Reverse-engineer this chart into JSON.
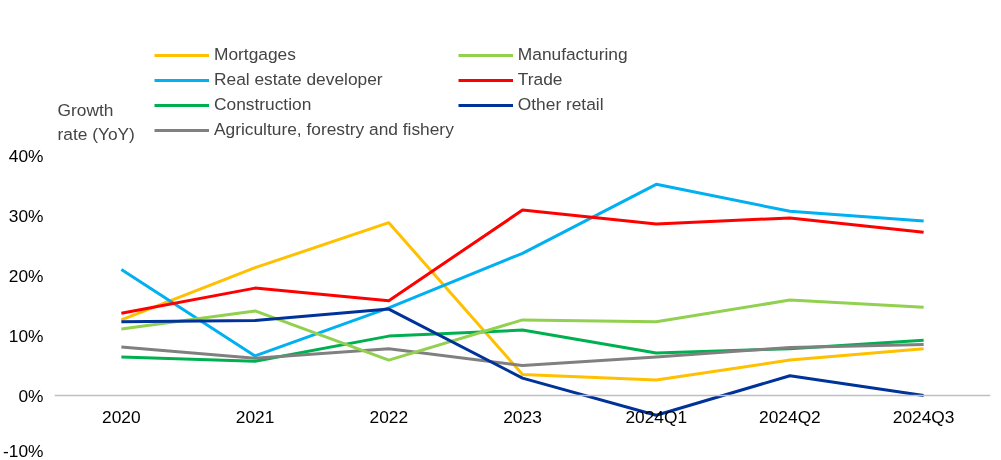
{
  "chart_data": {
    "type": "line",
    "ylabel": "Growth rate (YoY)",
    "categories": [
      "2020",
      "2021",
      "2022",
      "2023",
      "2024Q1",
      "2024Q2",
      "2024Q3"
    ],
    "ylim": [
      -10,
      40
    ],
    "yticks": [
      {
        "value": -10,
        "label": "-10%"
      },
      {
        "value": 0,
        "label": "0%"
      },
      {
        "value": 10,
        "label": "10%"
      },
      {
        "value": 20,
        "label": "20%"
      },
      {
        "value": 30,
        "label": "30%"
      },
      {
        "value": 40,
        "label": "40%"
      }
    ],
    "grid": false,
    "legend": "top",
    "marker": "none",
    "line_style": "solid",
    "series": [
      {
        "name": "Mortgages",
        "color": "#ffc000",
        "values": [
          12.6,
          21.3,
          28.8,
          3.5,
          2.6,
          5.9,
          7.8
        ]
      },
      {
        "name": "Real estate developer",
        "color": "#00b0f0",
        "values": [
          21,
          6.6,
          14.6,
          23.7,
          35.2,
          30.7,
          29.1
        ]
      },
      {
        "name": "Construction",
        "color": "#00b050",
        "values": [
          6.4,
          5.7,
          9.9,
          10.9,
          7.1,
          7.8,
          9.2
        ]
      },
      {
        "name": "Agriculture, forestry and fishery",
        "color": "#808080",
        "values": [
          8.1,
          6.2,
          7.8,
          5.0,
          6.4,
          8.0,
          8.5
        ]
      },
      {
        "name": "Manufacturing",
        "color": "#92d050",
        "values": [
          11.1,
          14.1,
          5.9,
          12.6,
          12.3,
          15.9,
          14.7
        ]
      },
      {
        "name": "Trade",
        "color": "#ff0000",
        "values": [
          13.7,
          17.9,
          15.8,
          30.9,
          28.6,
          29.6,
          27.2
        ]
      },
      {
        "name": "Other retail",
        "color": "#003399",
        "values": [
          12.3,
          12.5,
          14.4,
          2.9,
          -3.3,
          3.3,
          0
        ]
      }
    ]
  }
}
